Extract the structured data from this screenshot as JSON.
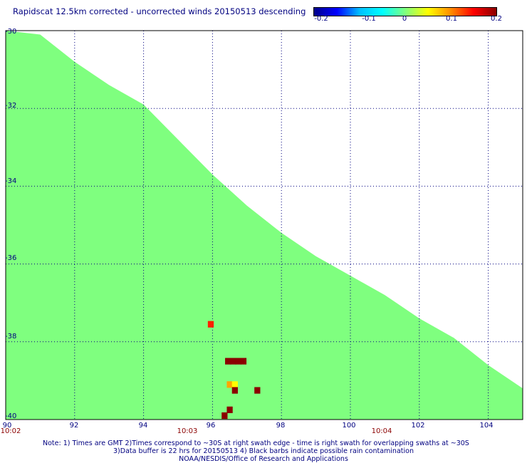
{
  "title": "Rapidscat 12.5km corrected - uncorrected winds 20150513 descending",
  "colorbar": {
    "ticks": [
      "-0.2",
      "-0.1",
      "0",
      "0.1",
      "0.2"
    ],
    "range": [
      -0.2,
      0.2
    ],
    "colors": [
      "#00008b",
      "#0000ff",
      "#00bfff",
      "#00ffff",
      "#7fff7f",
      "#ffff00",
      "#ff8c00",
      "#ff0000",
      "#8b0000"
    ]
  },
  "map": {
    "lon_range": [
      90,
      105
    ],
    "lat_range": [
      -30,
      -40
    ],
    "lon_labels": [
      "90",
      "92",
      "94",
      "96",
      "98",
      "100",
      "102",
      "104"
    ],
    "lat_labels": [
      "-30",
      "-32",
      "-34",
      "-36",
      "-38",
      "-40"
    ],
    "time_labels": [
      {
        "text": "10:02",
        "lon": 90
      },
      {
        "text": "10:03",
        "lon": 95.3
      },
      {
        "text": "10:04",
        "lon": 100.9
      }
    ],
    "colors": {
      "zero_fill": "#7fff7f",
      "grid": "#000080"
    },
    "swath_edge_lat_by_lon": [
      [
        90.0,
        -30.0
      ],
      [
        91.0,
        -30.1
      ],
      [
        92.0,
        -30.8
      ],
      [
        93.0,
        -31.4
      ],
      [
        94.0,
        -31.9
      ],
      [
        95.0,
        -32.8
      ],
      [
        96.0,
        -33.7
      ],
      [
        97.0,
        -34.5
      ],
      [
        98.0,
        -35.2
      ],
      [
        99.0,
        -35.8
      ],
      [
        100.0,
        -36.3
      ],
      [
        101.0,
        -36.8
      ],
      [
        102.0,
        -37.4
      ],
      [
        103.0,
        -37.9
      ],
      [
        104.0,
        -38.6
      ],
      [
        105.0,
        -39.2
      ]
    ],
    "cells": [
      {
        "lon": 95.95,
        "lat": -37.55,
        "value": 0.13
      },
      {
        "lon": 96.45,
        "lat": -38.5,
        "value": 0.2
      },
      {
        "lon": 96.6,
        "lat": -38.5,
        "value": 0.2
      },
      {
        "lon": 96.75,
        "lat": -38.5,
        "value": 0.2
      },
      {
        "lon": 96.9,
        "lat": -38.5,
        "value": 0.2
      },
      {
        "lon": 96.5,
        "lat": -39.1,
        "value": 0.07
      },
      {
        "lon": 96.65,
        "lat": -39.1,
        "value": 0.05
      },
      {
        "lon": 96.65,
        "lat": -39.25,
        "value": 0.2
      },
      {
        "lon": 97.3,
        "lat": -39.25,
        "value": 0.2
      },
      {
        "lon": 96.5,
        "lat": -39.75,
        "value": 0.2
      },
      {
        "lon": 96.35,
        "lat": -39.9,
        "value": 0.2
      }
    ]
  },
  "notes": [
    "Note: 1) Times are GMT 2)Times correspond to ~30S at right swath edge - time is right swath for overlapping swaths at ~30S",
    "3)Data buffer is 22 hrs for 20150513 4) Black barbs indicate possible rain contamination",
    "NOAA/NESDIS/Office of Research and Applications"
  ]
}
